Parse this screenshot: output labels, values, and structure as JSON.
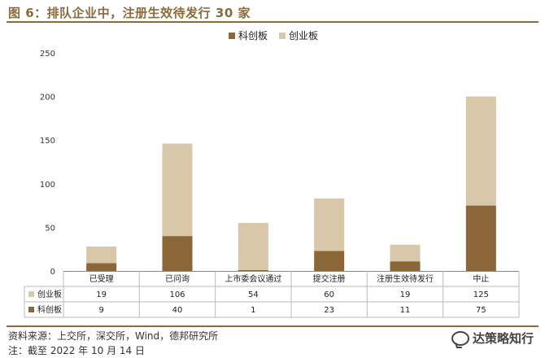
{
  "title": "图 6：排队企业中，注册生效待发行 30 家",
  "source": "资料来源：上交所，深交所，Wind，德邦研究所",
  "note": "注：截至 2022 年 10 月 14 日",
  "watermark": "达策略知行",
  "chart_data": {
    "type": "bar",
    "stacked": true,
    "categories": [
      "已受理",
      "已问询",
      "上市委会议通过",
      "提交注册",
      "注册生效待发行",
      "中止"
    ],
    "series": [
      {
        "name": "科创板",
        "values": [
          9,
          40,
          1,
          23,
          11,
          75
        ],
        "color": "#8b6636"
      },
      {
        "name": "创业板",
        "values": [
          19,
          106,
          54,
          60,
          19,
          125
        ],
        "color": "#d8c7a8"
      }
    ],
    "yticks": [
      0,
      50,
      100,
      150,
      200,
      250
    ],
    "ylim": [
      0,
      250
    ],
    "legend": "top-center",
    "grid": false,
    "table_rows": [
      "创业板",
      "科创板"
    ]
  }
}
